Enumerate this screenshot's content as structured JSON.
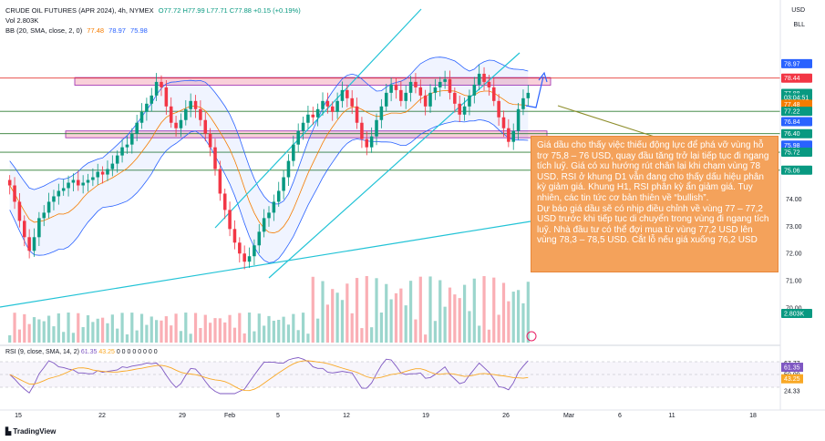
{
  "header": {
    "title": "CRUDE OIL FUTURES (APR 2024), 4h, NYMEX",
    "ohlc": "O77.72 H77.99 L77.71 C77.88 +0.15 (+0.19%)",
    "vol": "Vol  2.803K",
    "bb_label": "BB (20, SMA, close, 2, 0)",
    "bb_values": [
      "77.48",
      "78.97",
      "75.98"
    ],
    "rsi_label": "RSI (9, close, SMA, 14, 2)",
    "rsi_values": [
      "61.35",
      "43.25"
    ],
    "rsi_tail": "0 0 0 0 0 0 0 0"
  },
  "top_right": {
    "currency": "USD",
    "unit": "BLL"
  },
  "price_axis": {
    "ticks": [
      "75.00",
      "74.00",
      "73.00",
      "72.00",
      "71.00",
      "70.00"
    ],
    "badges": [
      {
        "text": "78.97",
        "color": "#2962ff",
        "value": 78.97
      },
      {
        "text": "78.44",
        "color": "#f23645",
        "value": 78.44
      },
      {
        "text": "77.88",
        "color": "#089981",
        "value": 77.88
      },
      {
        "text": "03:04:51",
        "color": "#089981",
        "value": 77.72
      },
      {
        "text": "77.48",
        "color": "#f57c00",
        "value": 77.48
      },
      {
        "text": "77.22",
        "color": "#089981",
        "value": 77.22
      },
      {
        "text": "76.84",
        "color": "#2962ff",
        "value": 76.84
      },
      {
        "text": "76.40",
        "color": "#089981",
        "value": 76.4
      },
      {
        "text": "75.98",
        "color": "#2962ff",
        "value": 75.98
      },
      {
        "text": "75.72",
        "color": "#089981",
        "value": 75.72
      },
      {
        "text": "75.06",
        "color": "#089981",
        "value": 75.06
      },
      {
        "text": "2.803K",
        "color": "#089981",
        "value": 69.8
      }
    ]
  },
  "rsi_axis": {
    "ticks": [
      "67.77",
      "61.35",
      "50.00",
      "43.25",
      "24.33"
    ]
  },
  "time_axis": [
    "15",
    "22",
    "29",
    "Feb",
    "5",
    "12",
    "19",
    "26",
    "Mar",
    "6",
    "11",
    "18"
  ],
  "note": {
    "text": "Giá dầu cho thấy việc thiếu động lực để phá vỡ vùng hỗ trợ 75,8 – 76 USD, quay đầu tăng trở lại tiếp tục đi ngang tích luỹ. Giá có xu hướng rút chân lại khi chạm vùng 78 USD. RSI ở khung D1 vẫn đang cho thấy dấu hiệu phân kỳ giảm giá. Khung H1, RSI phân kỳ ẩn giảm giá. Tuy nhiên, các tin tức cơ bản thiên về “bullish”.\nDự báo giá dầu sẽ có nhịp điều chỉnh về vùng 77 – 77,2 USD trước khi tiếp tục di chuyển trong vùng đi ngang tích luỹ. Nhà đầu tư có thể đợi mua từ vùng 77,2 USD lên vùng 78,3 – 78,5 USD. Cắt lỗ nếu giá xuống 76,2 USD"
  },
  "logo": "TradingView",
  "colors": {
    "up": "#089981",
    "down": "#f23645",
    "bb_basis": "#f57c00",
    "bb_band": "#2962ff",
    "trend": "#22c3d6",
    "zone_fill": "#f8c4d0",
    "zone_border": "#9c27b0",
    "level": "#2e7d32"
  },
  "chart_data": {
    "type": "candlestick",
    "ylim": [
      69.6,
      79.3
    ],
    "levels": [
      78.44,
      77.22,
      76.4,
      75.72,
      75.06
    ],
    "zones": [
      [
        78.18,
        78.46
      ],
      [
        76.25,
        76.5
      ]
    ],
    "close_series": [
      74.5,
      73.9,
      73.2,
      72.6,
      72.1,
      72.6,
      73.3,
      73.5,
      73.9,
      74.1,
      74.3,
      74.4,
      74.6,
      74.7,
      74.5,
      74.6,
      74.7,
      74.8,
      75.0,
      74.9,
      75.1,
      75.3,
      75.6,
      75.9,
      76.0,
      76.4,
      76.8,
      77.2,
      77.5,
      77.8,
      78.3,
      78.1,
      77.4,
      76.8,
      76.6,
      76.9,
      77.3,
      77.6,
      77.3,
      76.9,
      76.4,
      75.9,
      75.1,
      74.2,
      73.6,
      72.9,
      72.4,
      72.0,
      71.7,
      71.9,
      72.3,
      72.8,
      73.3,
      73.5,
      73.9,
      74.3,
      74.8,
      75.4,
      76.0,
      76.5,
      76.8,
      77.1,
      77.0,
      77.3,
      77.6,
      77.4,
      77.2,
      77.6,
      78.0,
      77.7,
      77.4,
      76.8,
      76.2,
      75.9,
      76.3,
      76.9,
      77.4,
      77.9,
      78.2,
      78.0,
      77.6,
      77.9,
      78.3,
      78.1,
      77.8,
      77.4,
      77.9,
      78.1,
      78.3,
      78.4,
      77.9,
      77.5,
      77.1,
      77.4,
      77.8,
      78.2,
      78.6,
      78.3,
      78.1,
      77.6,
      77.0,
      76.6,
      76.1,
      76.5,
      77.3,
      77.7,
      77.9
    ]
  }
}
